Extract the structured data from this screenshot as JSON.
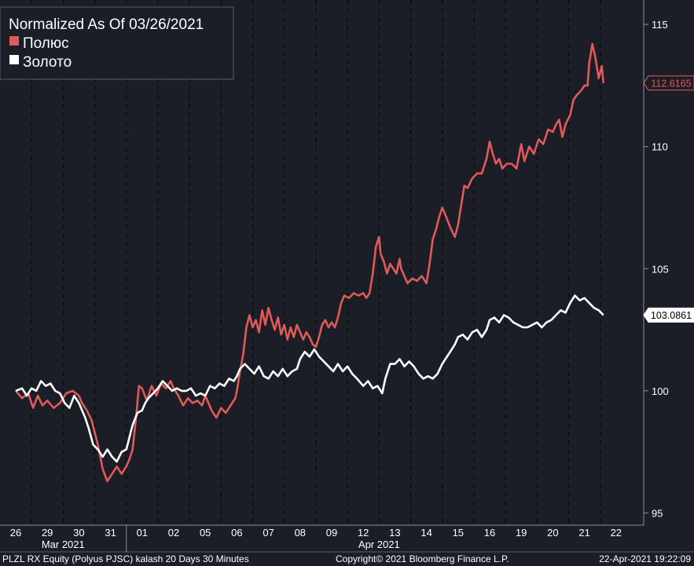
{
  "chart_data": {
    "type": "line",
    "title": "Normalized As Of 03/26/2021",
    "ylim": [
      94.5,
      116
    ],
    "yticks": [
      95,
      100,
      105,
      110,
      115
    ],
    "x_ticks": [
      "26",
      "29",
      "30",
      "31",
      "01",
      "02",
      "05",
      "06",
      "07",
      "08",
      "09",
      "12",
      "13",
      "14",
      "15",
      "16",
      "19",
      "20",
      "21",
      "22"
    ],
    "months": [
      {
        "label": "Mar 2021",
        "start_index": 0,
        "end_index": 3
      },
      {
        "label": "Apr 2021",
        "start_index": 4,
        "end_index": 19
      }
    ],
    "grid": "vertical-dashed",
    "legend_position": "top-left",
    "series": [
      {
        "name": "Полюс",
        "color": "#e05a5a",
        "last_value": "112.6165",
        "points": [
          [
            0.0,
            100.0
          ],
          [
            0.2,
            99.7
          ],
          [
            0.4,
            99.9
          ],
          [
            0.55,
            99.3
          ],
          [
            0.7,
            99.8
          ],
          [
            0.85,
            99.4
          ],
          [
            1.0,
            99.6
          ],
          [
            1.2,
            99.3
          ],
          [
            1.4,
            99.5
          ],
          [
            1.6,
            99.9
          ],
          [
            1.8,
            100.0
          ],
          [
            2.0,
            99.8
          ],
          [
            2.1,
            99.5
          ],
          [
            2.25,
            99.2
          ],
          [
            2.4,
            98.8
          ],
          [
            2.6,
            97.8
          ],
          [
            2.75,
            96.8
          ],
          [
            2.9,
            96.3
          ],
          [
            3.05,
            96.6
          ],
          [
            3.2,
            96.9
          ],
          [
            3.35,
            96.6
          ],
          [
            3.5,
            96.9
          ],
          [
            3.6,
            97.2
          ],
          [
            3.7,
            97.6
          ],
          [
            3.8,
            98.8
          ],
          [
            3.9,
            100.2
          ],
          [
            4.0,
            100.1
          ],
          [
            4.15,
            99.6
          ],
          [
            4.3,
            100.2
          ],
          [
            4.45,
            99.8
          ],
          [
            4.6,
            100.3
          ],
          [
            4.75,
            100.1
          ],
          [
            4.9,
            100.4
          ],
          [
            5.0,
            100.1
          ],
          [
            5.15,
            99.8
          ],
          [
            5.3,
            99.4
          ],
          [
            5.45,
            99.7
          ],
          [
            5.6,
            99.5
          ],
          [
            5.75,
            99.6
          ],
          [
            5.9,
            99.4
          ],
          [
            6.0,
            99.8
          ],
          [
            6.1,
            99.5
          ],
          [
            6.2,
            99.2
          ],
          [
            6.35,
            98.9
          ],
          [
            6.5,
            99.3
          ],
          [
            6.65,
            99.1
          ],
          [
            6.8,
            99.4
          ],
          [
            6.95,
            99.7
          ],
          [
            7.0,
            100.0
          ],
          [
            7.1,
            100.8
          ],
          [
            7.2,
            101.5
          ],
          [
            7.3,
            102.6
          ],
          [
            7.4,
            103.1
          ],
          [
            7.5,
            102.6
          ],
          [
            7.6,
            102.9
          ],
          [
            7.7,
            102.4
          ],
          [
            7.8,
            103.3
          ],
          [
            7.9,
            102.7
          ],
          [
            8.0,
            103.4
          ],
          [
            8.1,
            102.9
          ],
          [
            8.2,
            102.5
          ],
          [
            8.3,
            103.0
          ],
          [
            8.4,
            102.3
          ],
          [
            8.5,
            102.7
          ],
          [
            8.6,
            102.1
          ],
          [
            8.7,
            102.6
          ],
          [
            8.8,
            102.2
          ],
          [
            8.9,
            102.7
          ],
          [
            9.0,
            102.4
          ],
          [
            9.1,
            102.1
          ],
          [
            9.2,
            102.4
          ],
          [
            9.3,
            102.2
          ],
          [
            9.4,
            101.9
          ],
          [
            9.5,
            101.8
          ],
          [
            9.6,
            102.2
          ],
          [
            9.7,
            102.7
          ],
          [
            9.8,
            102.9
          ],
          [
            9.9,
            102.6
          ],
          [
            10.0,
            102.8
          ],
          [
            10.1,
            102.6
          ],
          [
            10.2,
            103.0
          ],
          [
            10.3,
            103.6
          ],
          [
            10.4,
            103.9
          ],
          [
            10.55,
            103.8
          ],
          [
            10.7,
            104.0
          ],
          [
            10.85,
            103.9
          ],
          [
            11.0,
            104.0
          ],
          [
            11.1,
            103.8
          ],
          [
            11.2,
            104.0
          ],
          [
            11.3,
            104.8
          ],
          [
            11.4,
            105.9
          ],
          [
            11.5,
            106.3
          ],
          [
            11.55,
            105.6
          ],
          [
            11.65,
            105.3
          ],
          [
            11.75,
            104.8
          ],
          [
            11.85,
            105.2
          ],
          [
            11.95,
            105.0
          ],
          [
            12.05,
            104.8
          ],
          [
            12.15,
            105.4
          ],
          [
            12.2,
            105.0
          ],
          [
            12.3,
            104.7
          ],
          [
            12.4,
            104.4
          ],
          [
            12.55,
            104.6
          ],
          [
            12.7,
            104.5
          ],
          [
            12.85,
            104.7
          ],
          [
            13.0,
            104.4
          ],
          [
            13.1,
            105.2
          ],
          [
            13.2,
            106.2
          ],
          [
            13.3,
            106.6
          ],
          [
            13.4,
            107.1
          ],
          [
            13.5,
            107.5
          ],
          [
            13.6,
            107.2
          ],
          [
            13.75,
            106.7
          ],
          [
            13.9,
            106.3
          ],
          [
            14.0,
            106.8
          ],
          [
            14.1,
            107.6
          ],
          [
            14.2,
            108.4
          ],
          [
            14.3,
            108.3
          ],
          [
            14.45,
            108.7
          ],
          [
            14.6,
            108.9
          ],
          [
            14.75,
            108.9
          ],
          [
            14.9,
            109.5
          ],
          [
            15.0,
            110.2
          ],
          [
            15.1,
            109.7
          ],
          [
            15.2,
            109.3
          ],
          [
            15.3,
            109.5
          ],
          [
            15.4,
            109.1
          ],
          [
            15.55,
            109.3
          ],
          [
            15.7,
            109.3
          ],
          [
            15.85,
            109.1
          ],
          [
            16.0,
            110.1
          ],
          [
            16.1,
            109.4
          ],
          [
            16.25,
            110.0
          ],
          [
            16.4,
            109.7
          ],
          [
            16.55,
            110.3
          ],
          [
            16.7,
            110.1
          ],
          [
            16.85,
            110.7
          ],
          [
            17.0,
            110.6
          ],
          [
            17.1,
            110.9
          ],
          [
            17.2,
            111.1
          ],
          [
            17.3,
            110.4
          ],
          [
            17.4,
            110.9
          ],
          [
            17.55,
            111.3
          ],
          [
            17.65,
            111.9
          ],
          [
            17.75,
            112.1
          ],
          [
            17.9,
            112.3
          ],
          [
            18.0,
            112.5
          ],
          [
            18.1,
            112.5
          ],
          [
            18.15,
            113.4
          ],
          [
            18.25,
            114.2
          ],
          [
            18.35,
            113.6
          ],
          [
            18.45,
            112.8
          ],
          [
            18.55,
            113.3
          ],
          [
            18.6,
            112.6
          ]
        ]
      },
      {
        "name": "Золото",
        "color": "#ffffff",
        "last_value": "103.0861",
        "points": [
          [
            0.0,
            100.0
          ],
          [
            0.2,
            100.1
          ],
          [
            0.35,
            99.8
          ],
          [
            0.5,
            100.1
          ],
          [
            0.65,
            100.0
          ],
          [
            0.8,
            100.4
          ],
          [
            0.95,
            100.2
          ],
          [
            1.1,
            100.3
          ],
          [
            1.25,
            100.0
          ],
          [
            1.4,
            99.9
          ],
          [
            1.55,
            99.5
          ],
          [
            1.7,
            99.3
          ],
          [
            1.85,
            99.8
          ],
          [
            2.0,
            99.5
          ],
          [
            2.1,
            99.2
          ],
          [
            2.2,
            98.9
          ],
          [
            2.3,
            98.5
          ],
          [
            2.45,
            97.8
          ],
          [
            2.6,
            97.6
          ],
          [
            2.75,
            97.3
          ],
          [
            2.9,
            97.6
          ],
          [
            3.05,
            97.3
          ],
          [
            3.2,
            97.1
          ],
          [
            3.35,
            97.5
          ],
          [
            3.5,
            97.6
          ],
          [
            3.6,
            98.1
          ],
          [
            3.7,
            98.6
          ],
          [
            3.85,
            99.1
          ],
          [
            4.0,
            99.2
          ],
          [
            4.1,
            99.5
          ],
          [
            4.2,
            99.7
          ],
          [
            4.35,
            99.9
          ],
          [
            4.5,
            100.1
          ],
          [
            4.65,
            100.4
          ],
          [
            4.8,
            100.2
          ],
          [
            4.95,
            100.0
          ],
          [
            5.1,
            100.1
          ],
          [
            5.25,
            100.0
          ],
          [
            5.4,
            100.0
          ],
          [
            5.55,
            100.1
          ],
          [
            5.7,
            99.8
          ],
          [
            5.85,
            99.9
          ],
          [
            6.0,
            99.8
          ],
          [
            6.15,
            100.2
          ],
          [
            6.3,
            100.1
          ],
          [
            6.45,
            100.3
          ],
          [
            6.6,
            100.2
          ],
          [
            6.75,
            100.5
          ],
          [
            6.9,
            100.4
          ],
          [
            7.0,
            100.6
          ],
          [
            7.1,
            100.9
          ],
          [
            7.25,
            101.1
          ],
          [
            7.4,
            100.9
          ],
          [
            7.55,
            100.7
          ],
          [
            7.7,
            101.0
          ],
          [
            7.85,
            100.6
          ],
          [
            8.0,
            100.5
          ],
          [
            8.15,
            100.8
          ],
          [
            8.3,
            100.6
          ],
          [
            8.45,
            100.9
          ],
          [
            8.6,
            100.6
          ],
          [
            8.75,
            100.8
          ],
          [
            8.9,
            100.9
          ],
          [
            9.0,
            101.3
          ],
          [
            9.15,
            101.6
          ],
          [
            9.3,
            101.4
          ],
          [
            9.45,
            101.7
          ],
          [
            9.6,
            101.4
          ],
          [
            9.75,
            101.2
          ],
          [
            9.9,
            101.0
          ],
          [
            10.05,
            100.8
          ],
          [
            10.2,
            101.1
          ],
          [
            10.35,
            100.8
          ],
          [
            10.5,
            101.0
          ],
          [
            10.65,
            100.7
          ],
          [
            10.8,
            100.5
          ],
          [
            11.0,
            100.2
          ],
          [
            11.15,
            100.4
          ],
          [
            11.3,
            100.1
          ],
          [
            11.45,
            100.2
          ],
          [
            11.6,
            99.9
          ],
          [
            11.7,
            100.5
          ],
          [
            11.85,
            101.1
          ],
          [
            12.0,
            101.1
          ],
          [
            12.15,
            101.3
          ],
          [
            12.3,
            101.0
          ],
          [
            12.45,
            101.2
          ],
          [
            12.6,
            101.0
          ],
          [
            12.75,
            100.7
          ],
          [
            12.9,
            100.5
          ],
          [
            13.05,
            100.6
          ],
          [
            13.2,
            100.5
          ],
          [
            13.35,
            100.7
          ],
          [
            13.5,
            101.1
          ],
          [
            13.6,
            101.3
          ],
          [
            13.75,
            101.6
          ],
          [
            13.9,
            101.9
          ],
          [
            14.0,
            102.2
          ],
          [
            14.15,
            102.3
          ],
          [
            14.3,
            102.1
          ],
          [
            14.45,
            102.4
          ],
          [
            14.6,
            102.5
          ],
          [
            14.75,
            102.2
          ],
          [
            14.9,
            102.5
          ],
          [
            15.0,
            102.9
          ],
          [
            15.15,
            103.0
          ],
          [
            15.3,
            102.8
          ],
          [
            15.45,
            103.1
          ],
          [
            15.6,
            103.0
          ],
          [
            15.75,
            102.8
          ],
          [
            15.9,
            102.7
          ],
          [
            16.05,
            102.6
          ],
          [
            16.2,
            102.6
          ],
          [
            16.35,
            102.7
          ],
          [
            16.5,
            102.8
          ],
          [
            16.65,
            102.6
          ],
          [
            16.8,
            102.8
          ],
          [
            16.95,
            102.9
          ],
          [
            17.1,
            103.1
          ],
          [
            17.25,
            103.3
          ],
          [
            17.4,
            103.2
          ],
          [
            17.55,
            103.6
          ],
          [
            17.7,
            103.9
          ],
          [
            17.85,
            103.7
          ],
          [
            18.0,
            103.8
          ],
          [
            18.15,
            103.6
          ],
          [
            18.3,
            103.4
          ],
          [
            18.45,
            103.3
          ],
          [
            18.6,
            103.1
          ]
        ]
      }
    ]
  },
  "footer": {
    "left": "PLZL RX Equity (Polyus PJSC) kalash 20 Days 30 Minutes",
    "center": "Copyright© 2021 Bloomberg Finance L.P.",
    "right": "22-Apr-2021 19:22:09"
  }
}
